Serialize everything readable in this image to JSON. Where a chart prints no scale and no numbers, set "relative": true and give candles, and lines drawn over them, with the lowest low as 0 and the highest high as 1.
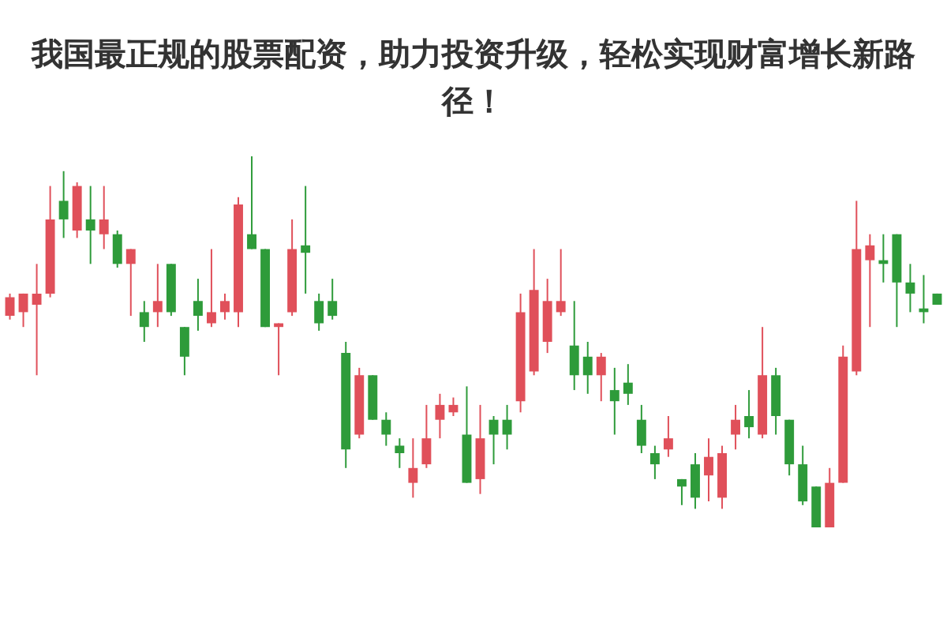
{
  "chart_data": {
    "type": "candlestick",
    "title": "我国最正规的股票配资，助力投资升级，轻松实现财富增长新路径！",
    "relative": true,
    "categories": [
      null,
      null,
      null,
      null,
      null,
      null,
      null,
      null,
      null,
      null,
      null,
      null,
      null,
      null,
      null,
      null,
      null,
      null,
      null,
      null,
      null,
      null,
      null,
      null,
      null,
      null,
      null,
      null,
      null,
      null,
      null,
      null,
      null,
      null,
      null,
      null,
      null,
      null,
      null,
      null,
      null,
      null,
      null,
      null,
      null,
      null,
      null,
      null,
      null,
      null,
      null,
      null,
      null,
      null,
      null,
      null,
      null,
      null,
      null,
      null,
      null,
      null,
      null,
      null,
      null,
      null,
      null,
      null,
      null,
      null
    ],
    "colors": [
      "#e0505a",
      "#e0505a",
      "#e0505a",
      "#e0505a",
      "#2e9b3a",
      "#e0505a",
      "#2e9b3a",
      "#e0505a",
      "#2e9b3a",
      "#e0505a",
      "#2e9b3a",
      "#e0505a",
      "#2e9b3a",
      "#2e9b3a",
      "#2e9b3a",
      "#e0505a",
      "#e0505a",
      "#e0505a",
      "#2e9b3a",
      "#2e9b3a",
      "#e0505a",
      "#e0505a",
      "#2e9b3a",
      "#2e9b3a",
      "#2e9b3a",
      "#2e9b3a",
      "#e0505a",
      "#2e9b3a",
      "#2e9b3a",
      "#2e9b3a",
      "#e0505a",
      "#e0505a",
      "#e0505a",
      "#e0505a",
      "#2e9b3a",
      "#e0505a",
      "#2e9b3a",
      "#2e9b3a",
      "#e0505a",
      "#e0505a",
      "#e0505a",
      "#e0505a",
      "#2e9b3a",
      "#2e9b3a",
      "#e0505a",
      "#2e9b3a",
      "#2e9b3a",
      "#2e9b3a",
      "#2e9b3a",
      "#e0505a",
      "#2e9b3a",
      "#2e9b3a",
      "#e0505a",
      "#e0505a",
      "#e0505a",
      "#2e9b3a",
      "#e0505a",
      "#2e9b3a",
      "#2e9b3a",
      "#2e9b3a",
      "#2e9b3a",
      "#e0505a",
      "#e0505a",
      "#e0505a",
      "#e0505a",
      "#2e9b3a",
      "#2e9b3a",
      "#2e9b3a",
      "#2e9b3a",
      "#2e9b3a"
    ],
    "ohlc": [
      [
        0.57,
        0.63,
        0.56,
        0.62
      ],
      [
        0.58,
        0.63,
        0.54,
        0.63
      ],
      [
        0.6,
        0.71,
        0.41,
        0.63
      ],
      [
        0.63,
        0.92,
        0.62,
        0.83
      ],
      [
        0.88,
        0.96,
        0.78,
        0.83
      ],
      [
        0.8,
        0.93,
        0.78,
        0.92
      ],
      [
        0.83,
        0.92,
        0.71,
        0.8
      ],
      [
        0.79,
        0.92,
        0.75,
        0.83
      ],
      [
        0.79,
        0.8,
        0.7,
        0.71
      ],
      [
        0.71,
        0.75,
        0.57,
        0.75
      ],
      [
        0.58,
        0.61,
        0.5,
        0.54
      ],
      [
        0.58,
        0.71,
        0.54,
        0.61
      ],
      [
        0.71,
        0.71,
        0.57,
        0.58
      ],
      [
        0.54,
        0.54,
        0.41,
        0.46
      ],
      [
        0.61,
        0.67,
        0.53,
        0.57
      ],
      [
        0.55,
        0.75,
        0.54,
        0.58
      ],
      [
        0.58,
        0.63,
        0.56,
        0.61
      ],
      [
        0.58,
        0.89,
        0.54,
        0.87
      ],
      [
        0.79,
        1.0,
        0.75,
        0.75
      ],
      [
        0.75,
        0.75,
        0.54,
        0.54
      ],
      [
        0.54,
        0.55,
        0.41,
        0.55
      ],
      [
        0.58,
        0.83,
        0.57,
        0.75
      ],
      [
        0.76,
        0.92,
        0.63,
        0.74
      ],
      [
        0.61,
        0.63,
        0.53,
        0.55
      ],
      [
        0.61,
        0.67,
        0.56,
        0.57
      ],
      [
        0.47,
        0.5,
        0.16,
        0.21
      ],
      [
        0.25,
        0.43,
        0.24,
        0.41
      ],
      [
        0.41,
        0.41,
        0.29,
        0.29
      ],
      [
        0.29,
        0.31,
        0.22,
        0.25
      ],
      [
        0.22,
        0.24,
        0.16,
        0.2
      ],
      [
        0.12,
        0.24,
        0.08,
        0.16
      ],
      [
        0.17,
        0.33,
        0.16,
        0.24
      ],
      [
        0.29,
        0.36,
        0.24,
        0.33
      ],
      [
        0.31,
        0.35,
        0.3,
        0.33
      ],
      [
        0.25,
        0.38,
        0.12,
        0.12
      ],
      [
        0.13,
        0.33,
        0.09,
        0.24
      ],
      [
        0.29,
        0.3,
        0.17,
        0.25
      ],
      [
        0.29,
        0.33,
        0.21,
        0.25
      ],
      [
        0.34,
        0.63,
        0.31,
        0.58
      ],
      [
        0.42,
        0.75,
        0.41,
        0.64
      ],
      [
        0.5,
        0.67,
        0.47,
        0.61
      ],
      [
        0.58,
        0.75,
        0.57,
        0.61
      ],
      [
        0.49,
        0.61,
        0.37,
        0.41
      ],
      [
        0.46,
        0.5,
        0.36,
        0.41
      ],
      [
        0.41,
        0.47,
        0.34,
        0.46
      ],
      [
        0.37,
        0.43,
        0.25,
        0.34
      ],
      [
        0.39,
        0.44,
        0.33,
        0.36
      ],
      [
        0.29,
        0.33,
        0.2,
        0.22
      ],
      [
        0.2,
        0.22,
        0.13,
        0.17
      ],
      [
        0.21,
        0.3,
        0.19,
        0.24
      ],
      [
        0.13,
        0.13,
        0.06,
        0.11
      ],
      [
        0.17,
        0.2,
        0.05,
        0.08
      ],
      [
        0.14,
        0.24,
        0.07,
        0.19
      ],
      [
        0.08,
        0.22,
        0.05,
        0.2
      ],
      [
        0.25,
        0.33,
        0.21,
        0.29
      ],
      [
        0.3,
        0.37,
        0.24,
        0.27
      ],
      [
        0.25,
        0.54,
        0.24,
        0.41
      ],
      [
        0.41,
        0.43,
        0.25,
        0.3
      ],
      [
        0.29,
        0.29,
        0.14,
        0.17
      ],
      [
        0.17,
        0.22,
        0.06,
        0.07
      ],
      [
        0.11,
        0.11,
        0.0,
        0.0
      ],
      [
        0.0,
        0.16,
        0.0,
        0.12
      ],
      [
        0.12,
        0.49,
        0.12,
        0.46
      ],
      [
        0.42,
        0.88,
        0.41,
        0.75
      ],
      [
        0.72,
        0.79,
        0.54,
        0.76
      ],
      [
        0.72,
        0.79,
        0.66,
        0.71
      ],
      [
        0.79,
        0.79,
        0.54,
        0.66
      ],
      [
        0.66,
        0.71,
        0.58,
        0.63
      ],
      [
        0.59,
        0.68,
        0.55,
        0.58
      ],
      [
        0.63,
        0.63,
        0.6,
        0.6
      ]
    ]
  }
}
